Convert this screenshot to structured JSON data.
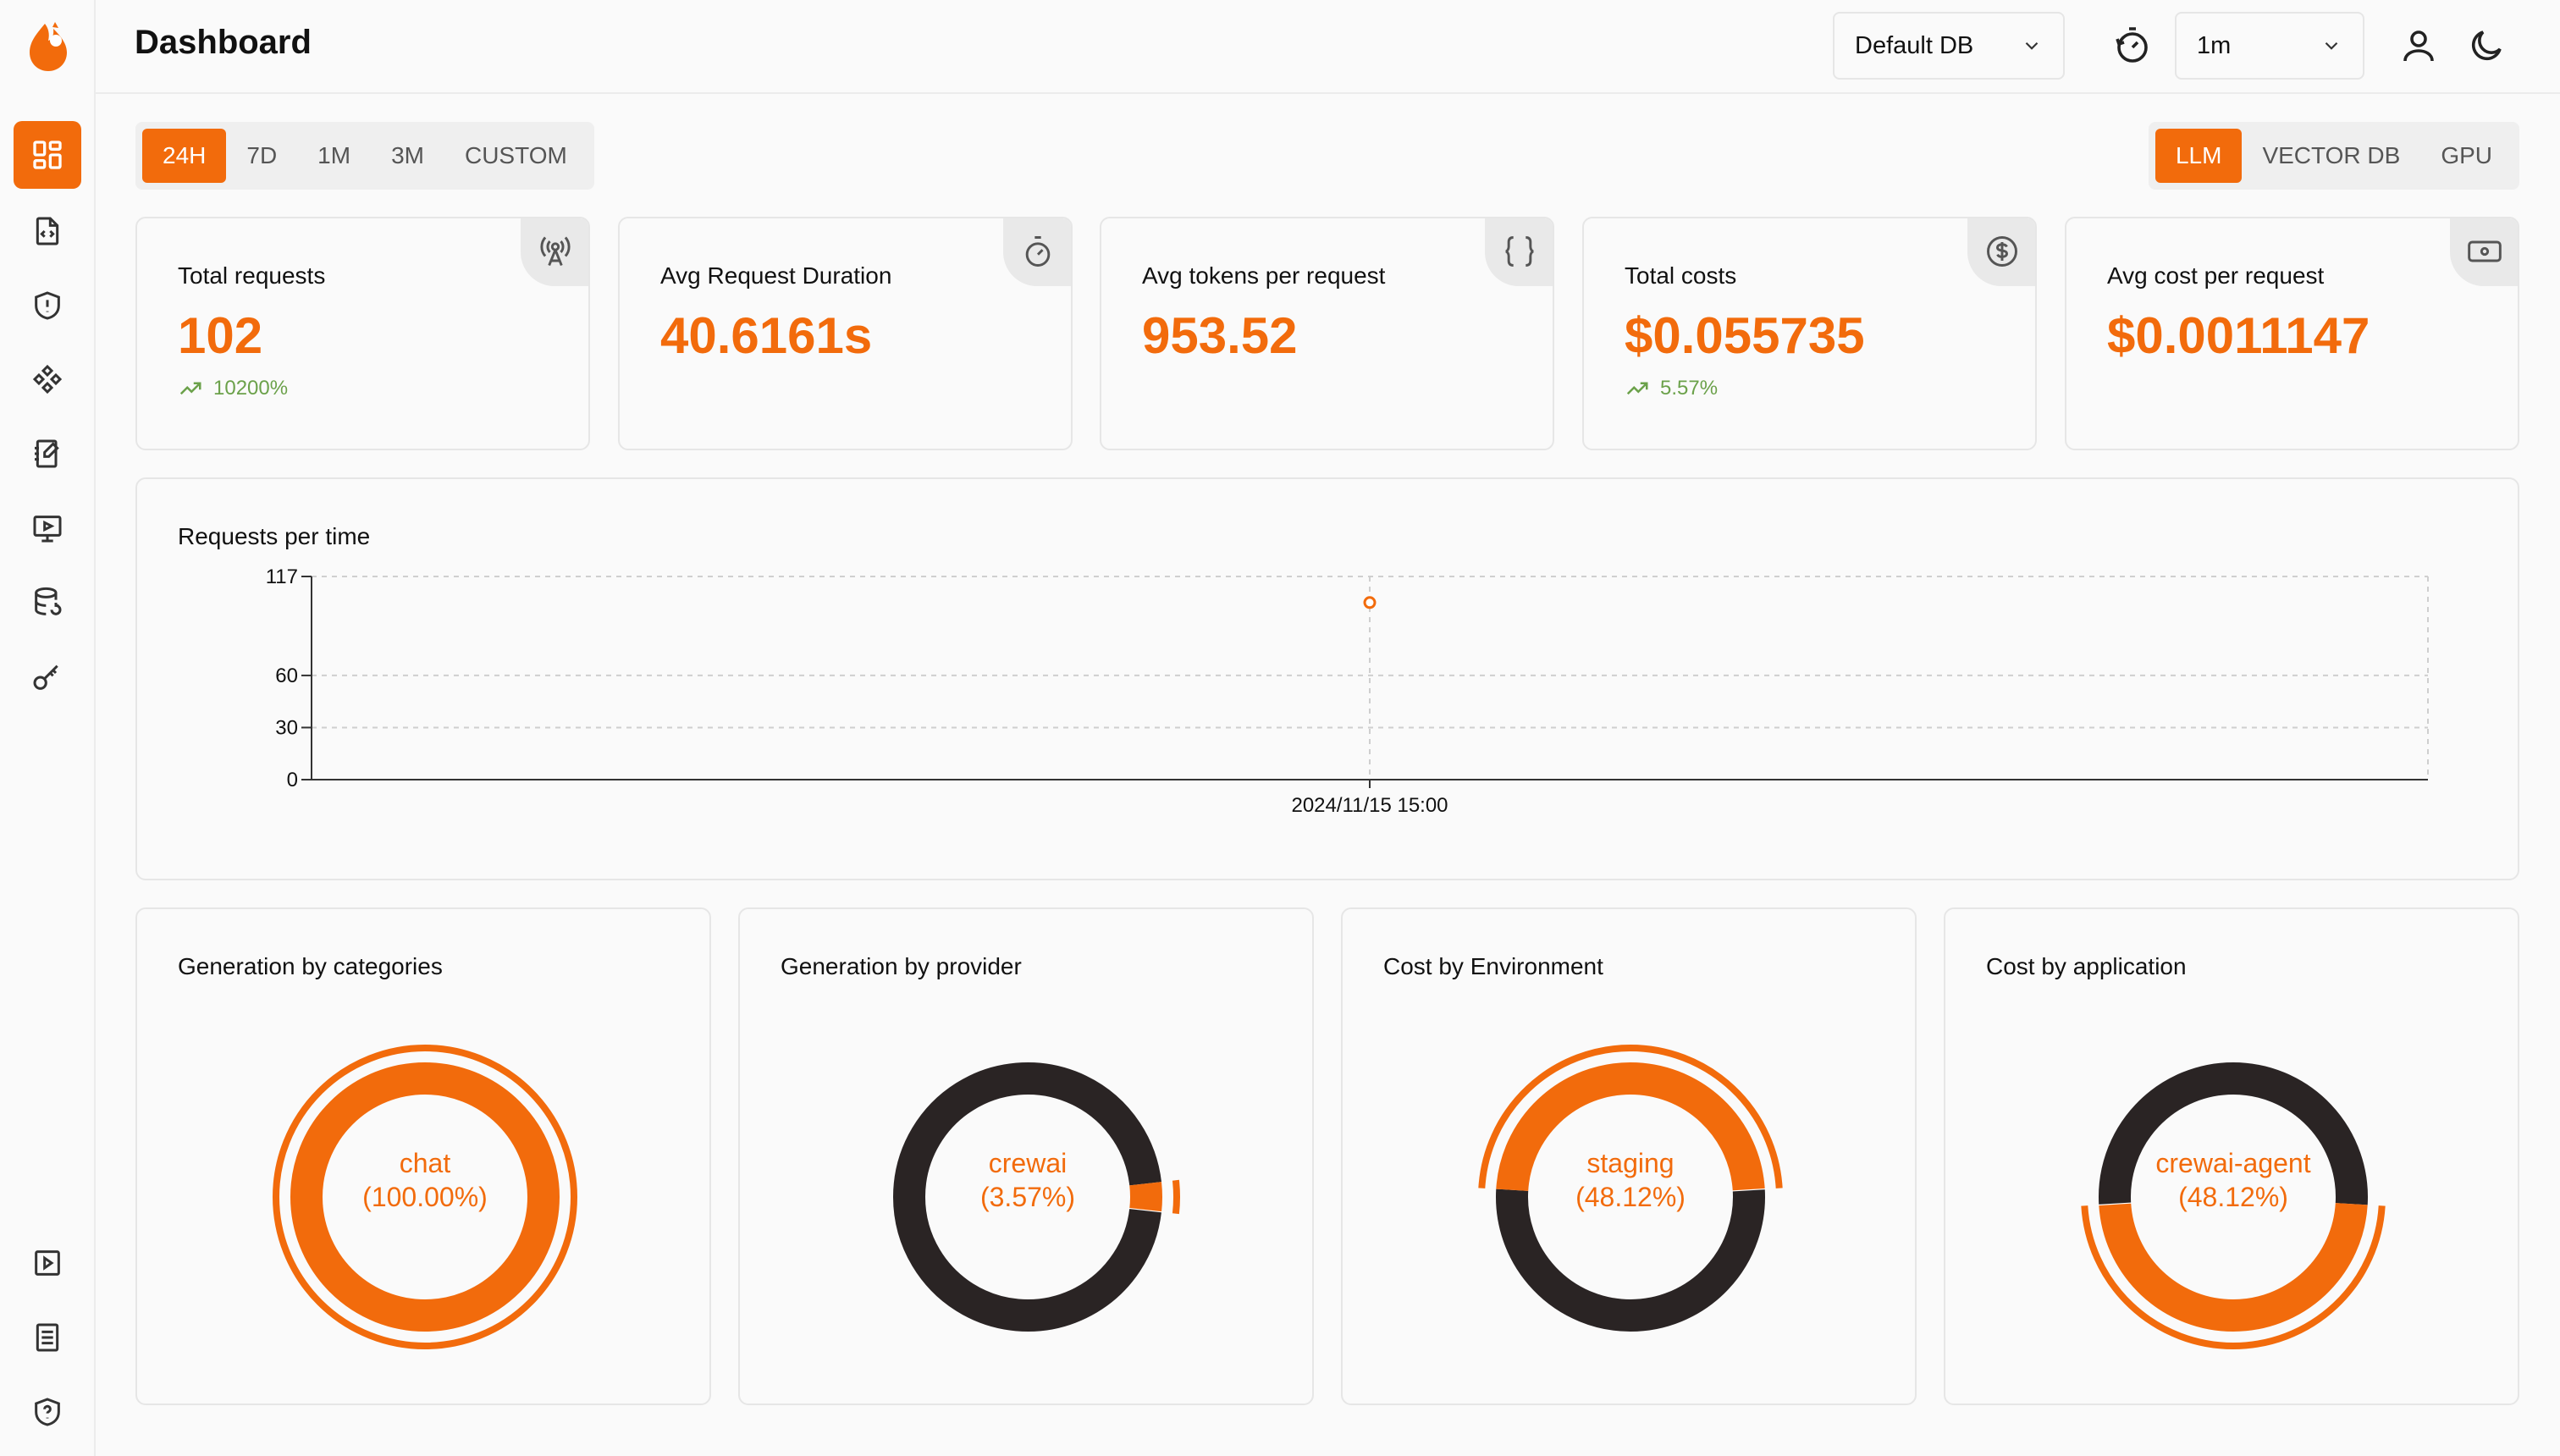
{
  "header": {
    "title": "Dashboard",
    "db_select": "Default DB",
    "refresh_select": "1m"
  },
  "time_ranges": [
    "24H",
    "7D",
    "1M",
    "3M",
    "CUSTOM"
  ],
  "active_time_range": "24H",
  "modes": [
    "LLM",
    "VECTOR DB",
    "GPU"
  ],
  "active_mode": "LLM",
  "stats": [
    {
      "label": "Total requests",
      "value": "102",
      "delta": "10200%",
      "icon": "antenna-icon"
    },
    {
      "label": "Avg Request Duration",
      "value": "40.6161s",
      "delta": "",
      "icon": "stopwatch-icon"
    },
    {
      "label": "Avg tokens per request",
      "value": "953.52",
      "delta": "",
      "icon": "braces-icon"
    },
    {
      "label": "Total costs",
      "value": "$0.055735",
      "delta": "5.57%",
      "icon": "dollar-circle-icon"
    },
    {
      "label": "Avg cost per request",
      "value": "$0.0011147",
      "delta": "",
      "icon": "banknote-icon"
    }
  ],
  "requests_chart": {
    "title": "Requests per time",
    "chart_data": {
      "type": "line",
      "title": "Requests per time",
      "x": [
        "2024/11/15 15:00"
      ],
      "series": [
        {
          "values": [
            102
          ]
        }
      ],
      "yticks": [
        0,
        30,
        60,
        117
      ],
      "ylim": [
        0,
        117
      ],
      "grid": true
    }
  },
  "donuts": [
    {
      "title": "Generation by categories",
      "label": "chat",
      "percent": "(100.00%)",
      "share": 1.0,
      "highlight_start": 0.0
    },
    {
      "title": "Generation by provider",
      "label": "crewai",
      "percent": "(3.57%)",
      "share": 0.0357,
      "highlight_start": 0.2321
    },
    {
      "title": "Cost by Environment",
      "label": "staging",
      "percent": "(48.12%)",
      "share": 0.4812,
      "highlight_start": 0.7594
    },
    {
      "title": "Cost by application",
      "label": "crewai-agent",
      "percent": "(48.12%)",
      "share": 0.4812,
      "highlight_start": 0.2594
    }
  ],
  "colors": {
    "accent": "#f26b0c",
    "dark": "#2a2424",
    "positive": "#6ba14a"
  }
}
